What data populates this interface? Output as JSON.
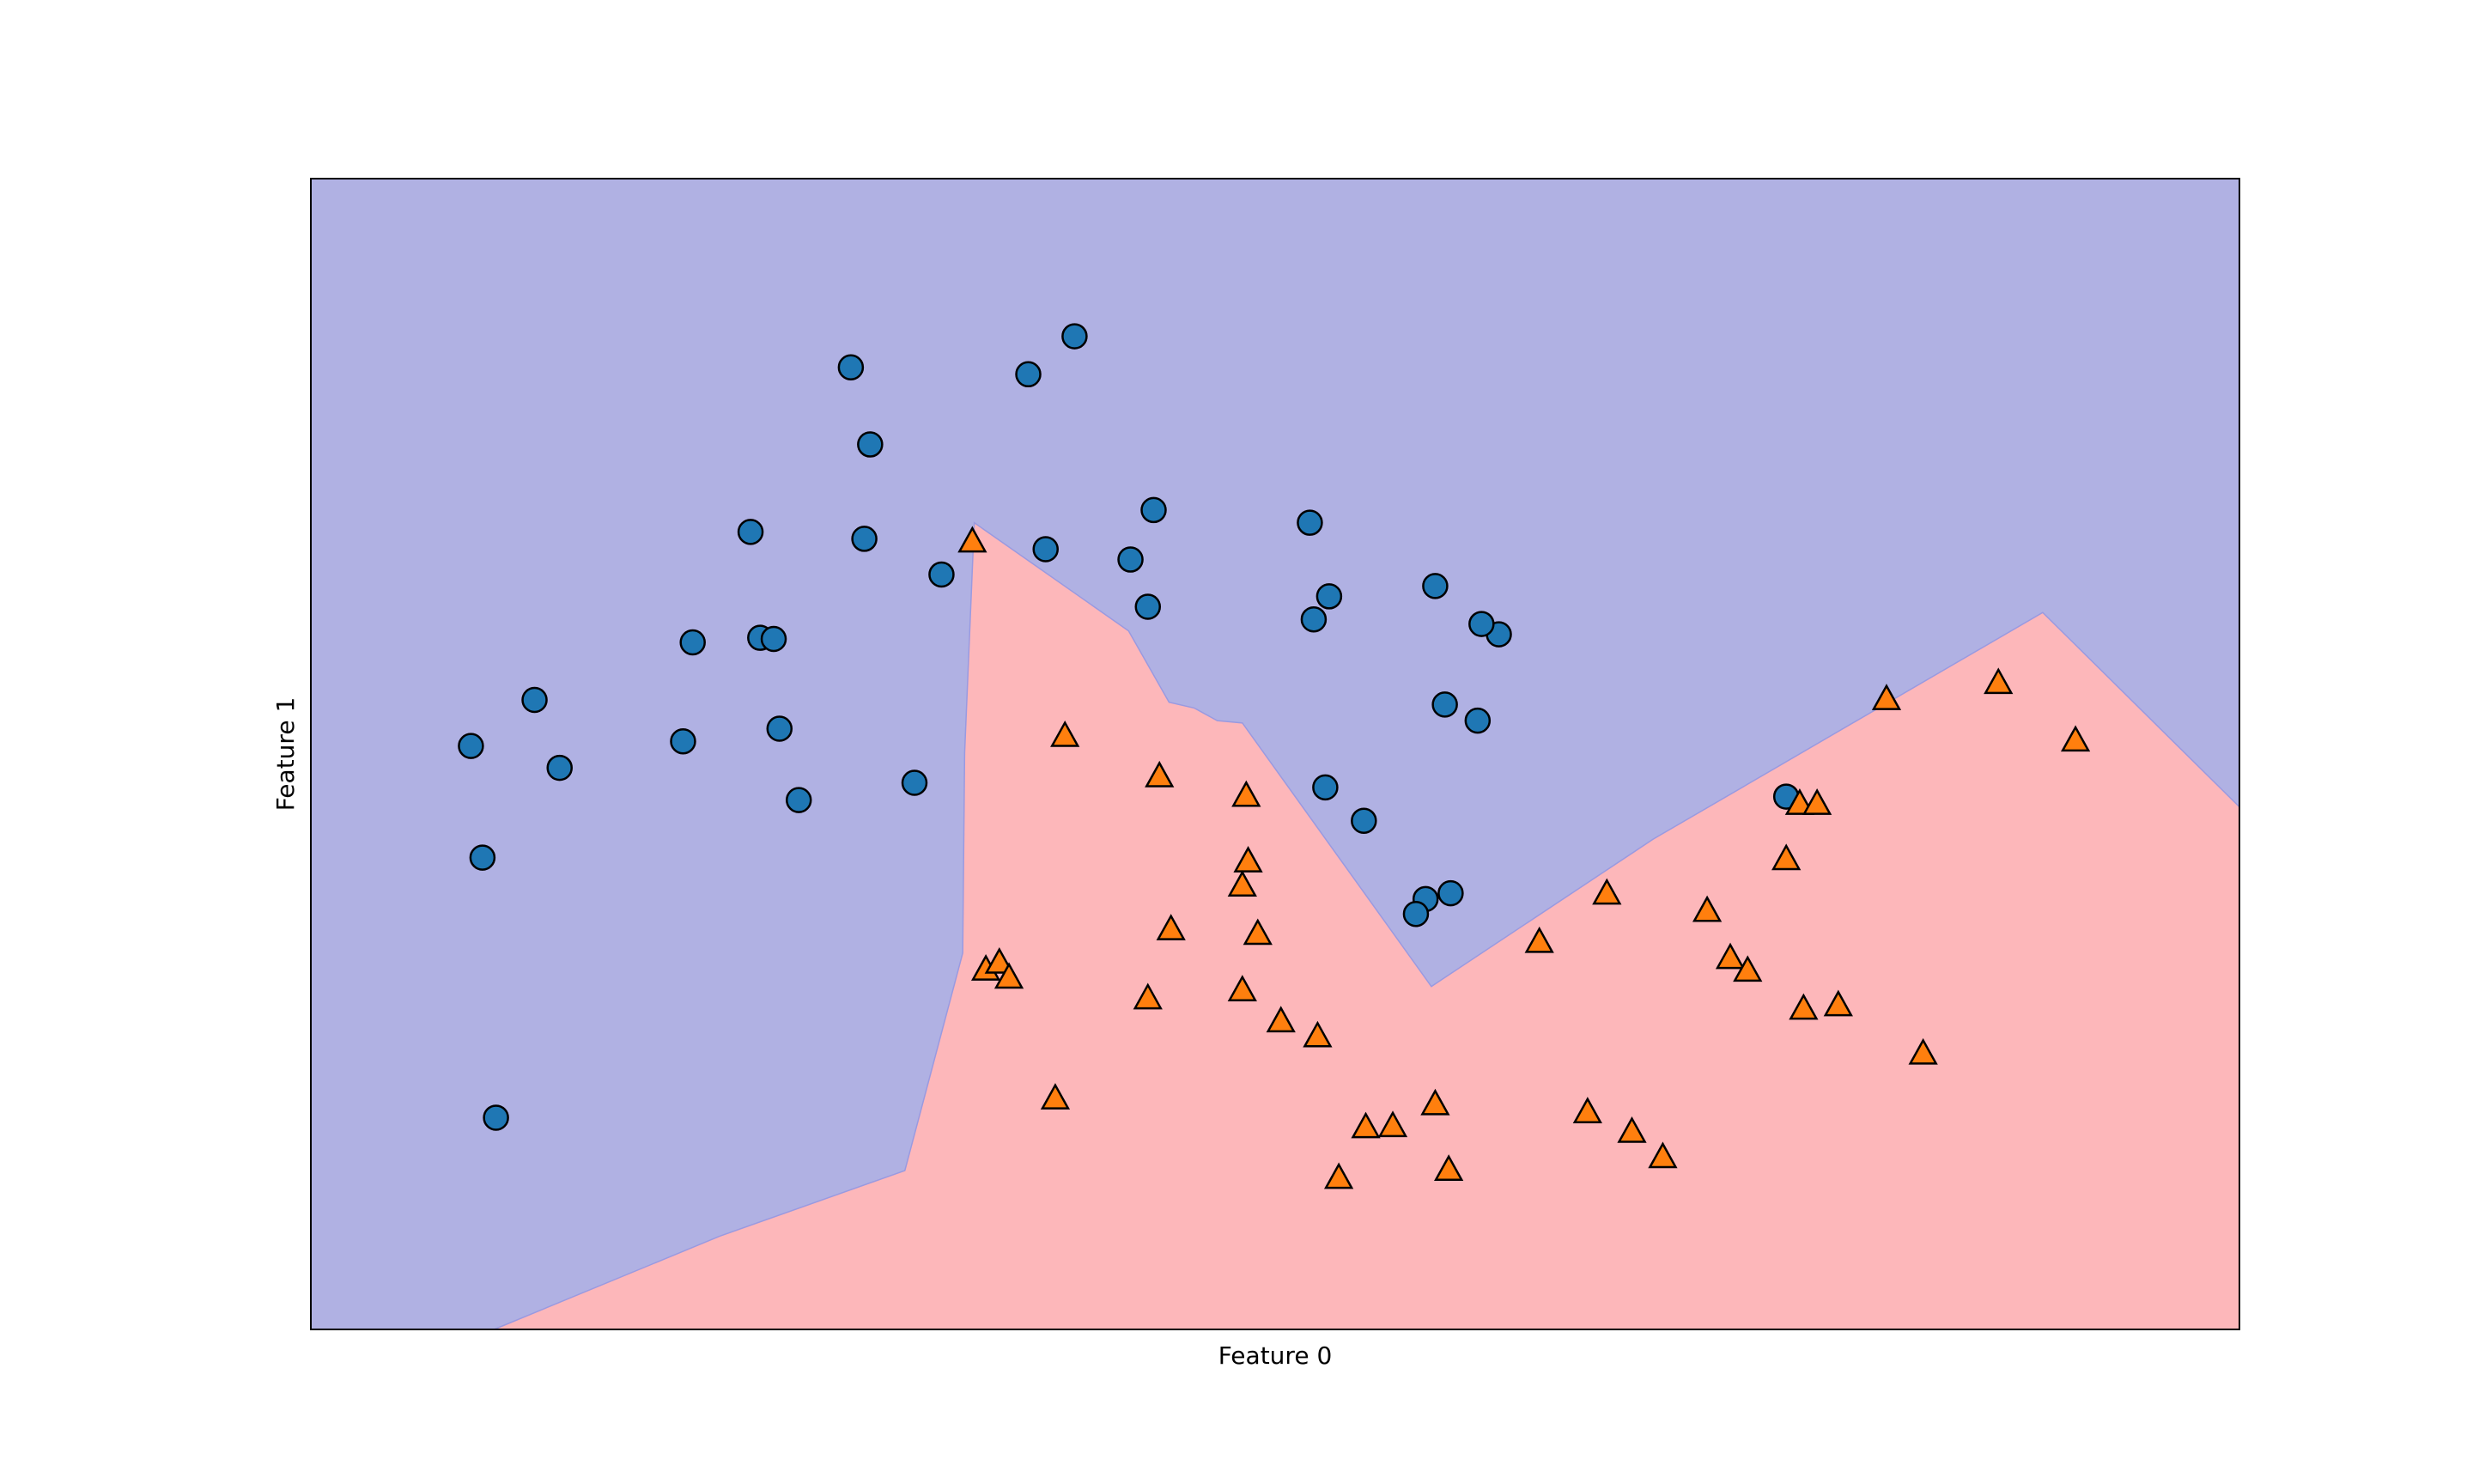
{
  "chart_data": {
    "type": "scatter",
    "title": "",
    "xlabel": "Feature 0",
    "ylabel": "Feature 1",
    "xlim": [
      0,
      100
    ],
    "ylim": [
      0,
      100
    ],
    "ticks_visible": false,
    "grid": false,
    "legend": null,
    "colors": {
      "region_class_0": "#b0b1e3",
      "region_class_1": "#fdb7ba",
      "class_0_marker": "#1f77b4",
      "class_1_marker": "#ff7f0e",
      "marker_edge": "#000000",
      "boundary_line": "#9a9ae0"
    },
    "decision_boundary": [
      [
        9.5,
        0
      ],
      [
        21.2,
        8.1
      ],
      [
        30.8,
        13.8
      ],
      [
        33.8,
        32.7
      ],
      [
        33.9,
        50.1
      ],
      [
        34.4,
        70.1
      ],
      [
        42.4,
        60.7
      ],
      [
        44.5,
        54.5
      ],
      [
        45.8,
        54.0
      ],
      [
        47.0,
        52.9
      ],
      [
        48.3,
        52.7
      ],
      [
        58.1,
        29.8
      ],
      [
        69.6,
        42.6
      ],
      [
        89.8,
        62.3
      ],
      [
        100,
        45.4
      ]
    ],
    "series": [
      {
        "marker": "circle",
        "points": [
          [
            28.0,
            83.6
          ],
          [
            37.2,
            83.0
          ],
          [
            39.6,
            86.3
          ],
          [
            29.0,
            76.9
          ],
          [
            22.8,
            69.3
          ],
          [
            28.7,
            68.7
          ],
          [
            43.7,
            71.2
          ],
          [
            38.1,
            67.8
          ],
          [
            32.7,
            65.6
          ],
          [
            42.5,
            66.9
          ],
          [
            43.4,
            62.8
          ],
          [
            51.8,
            70.1
          ],
          [
            52.8,
            63.7
          ],
          [
            52.0,
            61.7
          ],
          [
            58.3,
            64.6
          ],
          [
            61.6,
            60.4
          ],
          [
            60.7,
            61.3
          ],
          [
            19.8,
            59.7
          ],
          [
            23.3,
            60.1
          ],
          [
            24.0,
            60.0
          ],
          [
            11.6,
            54.7
          ],
          [
            8.3,
            50.7
          ],
          [
            12.9,
            48.8
          ],
          [
            19.3,
            51.1
          ],
          [
            24.3,
            52.2
          ],
          [
            25.3,
            46.0
          ],
          [
            31.3,
            47.5
          ],
          [
            58.8,
            54.3
          ],
          [
            60.5,
            52.9
          ],
          [
            52.6,
            47.1
          ],
          [
            54.6,
            44.2
          ],
          [
            8.9,
            41.0
          ],
          [
            57.8,
            37.4
          ],
          [
            59.1,
            37.9
          ],
          [
            57.3,
            36.1
          ],
          [
            9.6,
            18.4
          ],
          [
            76.5,
            46.3
          ]
        ]
      },
      {
        "marker": "triangle",
        "points": [
          [
            34.3,
            68.5
          ],
          [
            39.1,
            51.6
          ],
          [
            44.0,
            48.1
          ],
          [
            48.5,
            46.4
          ],
          [
            48.6,
            40.7
          ],
          [
            48.3,
            38.6
          ],
          [
            44.6,
            34.8
          ],
          [
            49.1,
            34.4
          ],
          [
            35.0,
            31.3
          ],
          [
            35.7,
            31.9
          ],
          [
            36.2,
            30.6
          ],
          [
            43.4,
            28.8
          ],
          [
            48.3,
            29.5
          ],
          [
            50.3,
            26.8
          ],
          [
            52.2,
            25.5
          ],
          [
            38.6,
            20.1
          ],
          [
            54.7,
            17.6
          ],
          [
            56.1,
            17.7
          ],
          [
            58.3,
            19.6
          ],
          [
            59.0,
            13.9
          ],
          [
            53.3,
            13.2
          ],
          [
            63.7,
            33.7
          ],
          [
            67.2,
            37.9
          ],
          [
            72.4,
            36.4
          ],
          [
            73.6,
            32.3
          ],
          [
            74.5,
            31.2
          ],
          [
            76.5,
            40.9
          ],
          [
            77.2,
            45.7
          ],
          [
            78.1,
            45.7
          ],
          [
            77.4,
            27.9
          ],
          [
            79.2,
            28.2
          ],
          [
            81.7,
            54.8
          ],
          [
            87.5,
            56.2
          ],
          [
            91.5,
            51.2
          ],
          [
            83.6,
            24.0
          ],
          [
            66.2,
            18.9
          ],
          [
            68.5,
            17.2
          ],
          [
            70.1,
            15.0
          ]
        ]
      }
    ]
  }
}
